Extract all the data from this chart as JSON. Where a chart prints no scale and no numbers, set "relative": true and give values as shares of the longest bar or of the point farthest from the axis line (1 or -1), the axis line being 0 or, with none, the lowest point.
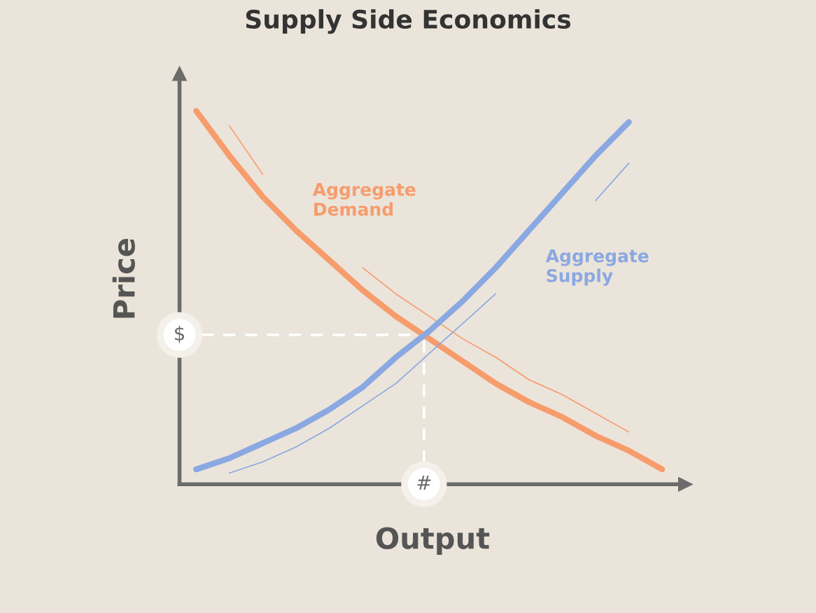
{
  "chart_data": {
    "type": "line",
    "title": "Supply Side Economics",
    "xlabel": "Output",
    "ylabel": "Price",
    "relative": true,
    "grid": false,
    "legend": false,
    "categories": [
      null,
      null,
      null,
      null,
      null,
      null,
      null,
      null,
      null,
      null,
      null,
      null,
      null,
      null,
      null
    ],
    "series": [
      {
        "name": "Aggregate\nDemand",
        "color": "#f79c6c",
        "values": [
          1.0,
          0.88,
          0.77,
          0.68,
          0.6,
          0.52,
          0.45,
          0.39,
          0.33,
          0.27,
          0.22,
          0.18,
          0.13,
          0.09,
          0.04
        ]
      },
      {
        "color": "#f79c6c",
        "values": [
          null,
          0.96,
          0.83,
          null,
          null,
          0.58,
          0.51,
          0.45,
          0.39,
          0.34,
          0.28,
          0.24,
          0.19,
          0.14,
          null
        ]
      },
      {
        "name": "Aggregate\nSupply",
        "color": "#8aa8e2",
        "values": [
          0.04,
          0.07,
          0.11,
          0.15,
          0.2,
          0.26,
          0.34,
          0.41,
          0.49,
          0.58,
          0.68,
          0.78,
          0.88,
          0.97,
          null
        ]
      },
      {
        "color": "#8aa8e2",
        "values": [
          null,
          0.03,
          0.06,
          0.1,
          0.15,
          0.21,
          0.27,
          0.35,
          0.43,
          0.51,
          null,
          null,
          0.76,
          0.86,
          null
        ]
      }
    ],
    "annotations": [
      "#"
    ],
    "ref_lines": [
      {
        "axis": "y",
        "value": 0.4,
        "label": "$",
        "color": "#ffffff",
        "line_style": "dashed"
      }
    ]
  }
}
